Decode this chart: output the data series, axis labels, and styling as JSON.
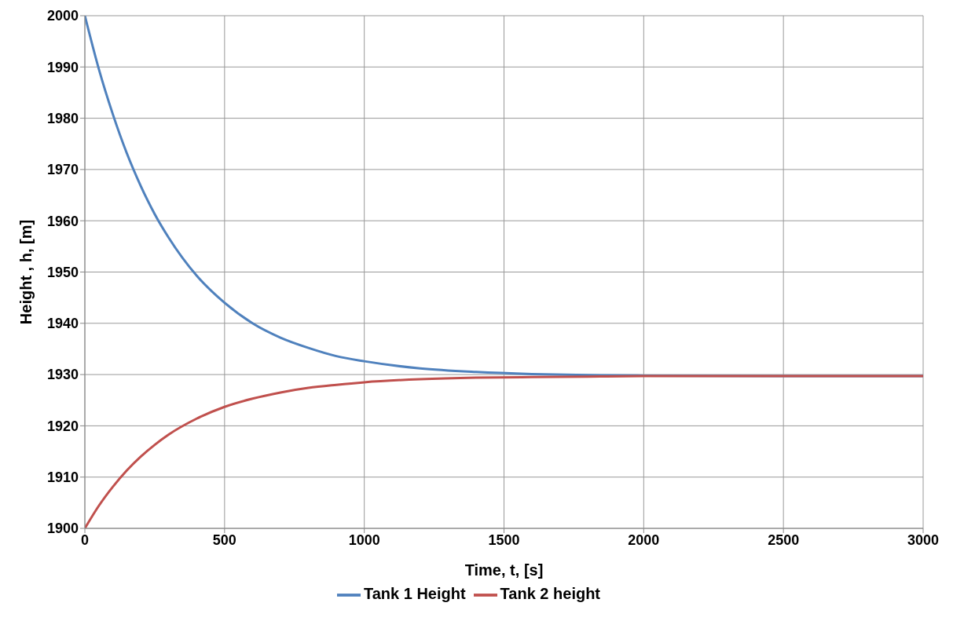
{
  "chart_data": {
    "type": "line",
    "xlabel": "Time, t, [s]",
    "ylabel": "Height , h, [m]",
    "x": [
      0,
      50,
      100,
      150,
      200,
      250,
      300,
      400,
      500,
      600,
      700,
      800,
      900,
      1000,
      1200,
      1400,
      1600,
      1800,
      2000,
      2500,
      3000
    ],
    "series": [
      {
        "name": "Tank 1 Height",
        "color": "#4f81bd",
        "values": [
          2000,
          1989.6,
          1980.8,
          1973.2,
          1966.8,
          1961.3,
          1956.7,
          1949.3,
          1944.0,
          1940.0,
          1937.2,
          1935.2,
          1933.6,
          1932.6,
          1931.2,
          1930.5,
          1930.1,
          1929.9,
          1929.8,
          1929.7,
          1929.7
        ]
      },
      {
        "name": "Tank 2 height",
        "color": "#c0504d",
        "values": [
          1900,
          1904.4,
          1908.1,
          1911.3,
          1914.0,
          1916.3,
          1918.3,
          1921.4,
          1923.7,
          1925.3,
          1926.5,
          1927.4,
          1928.0,
          1928.5,
          1929.1,
          1929.4,
          1929.5,
          1929.6,
          1929.7,
          1929.7,
          1929.7
        ]
      }
    ],
    "xlim": [
      0,
      3000
    ],
    "xticks": [
      0,
      500,
      1000,
      1500,
      2000,
      2500,
      3000
    ],
    "ylim": [
      1900,
      2000
    ],
    "yticks": [
      1900,
      1910,
      1920,
      1930,
      1940,
      1950,
      1960,
      1970,
      1980,
      1990,
      2000
    ],
    "grid": true,
    "legend": "bottom",
    "marker": "none",
    "line_style": "solid"
  }
}
